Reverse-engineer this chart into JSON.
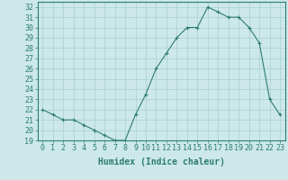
{
  "x": [
    0,
    1,
    2,
    3,
    4,
    5,
    6,
    7,
    8,
    9,
    10,
    11,
    12,
    13,
    14,
    15,
    16,
    17,
    18,
    19,
    20,
    21,
    22,
    23
  ],
  "y": [
    22,
    21.5,
    21,
    21,
    20.5,
    20,
    19.5,
    19,
    19,
    21.5,
    23.5,
    26,
    27.5,
    29,
    30,
    30,
    32,
    31.5,
    31,
    31,
    30,
    28.5,
    23,
    21.5
  ],
  "line_color": "#2e7d6e",
  "marker": "+",
  "marker_size": 3.5,
  "bg_color": "#cce8e8",
  "grid_color": "#aacfcf",
  "xlabel": "Humidex (Indice chaleur)",
  "xlim": [
    -0.5,
    23.5
  ],
  "ylim": [
    19,
    32.5
  ],
  "xtick_labels": [
    "0",
    "1",
    "2",
    "3",
    "4",
    "5",
    "6",
    "7",
    "8",
    "9",
    "10",
    "11",
    "12",
    "13",
    "14",
    "15",
    "16",
    "17",
    "18",
    "19",
    "20",
    "21",
    "22",
    "23"
  ],
  "ytick_values": [
    19,
    20,
    21,
    22,
    23,
    24,
    25,
    26,
    27,
    28,
    29,
    30,
    31,
    32
  ],
  "tick_color": "#2e7d6e",
  "label_color": "#2e7d6e",
  "xlabel_fontsize": 7,
  "tick_fontsize": 6
}
